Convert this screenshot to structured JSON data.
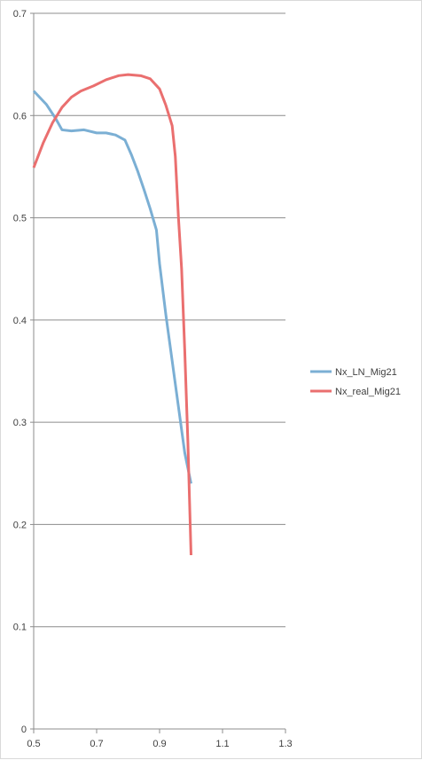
{
  "chart_data": {
    "type": "line",
    "title": "",
    "xlabel": "",
    "ylabel": "",
    "xlim": [
      0.5,
      1.3
    ],
    "ylim": [
      0,
      0.7
    ],
    "x_ticks": [
      "0.5",
      "0.7",
      "0.9",
      "1.1",
      "1.3"
    ],
    "y_ticks": [
      "0",
      "0.1",
      "0.2",
      "0.3",
      "0.4",
      "0.5",
      "0.6",
      "0.7"
    ],
    "grid": "horizontal",
    "legend_position": "right",
    "series": [
      {
        "name": "Nx_LN_Mig21",
        "color": "#7bafd4",
        "points": [
          [
            0.5,
            0.624
          ],
          [
            0.54,
            0.611
          ],
          [
            0.57,
            0.597
          ],
          [
            0.59,
            0.586
          ],
          [
            0.62,
            0.585
          ],
          [
            0.66,
            0.586
          ],
          [
            0.7,
            0.583
          ],
          [
            0.73,
            0.583
          ],
          [
            0.76,
            0.581
          ],
          [
            0.79,
            0.576
          ],
          [
            0.81,
            0.562
          ],
          [
            0.83,
            0.546
          ],
          [
            0.85,
            0.528
          ],
          [
            0.87,
            0.509
          ],
          [
            0.89,
            0.488
          ],
          [
            0.9,
            0.455
          ],
          [
            0.92,
            0.405
          ],
          [
            0.94,
            0.36
          ],
          [
            0.96,
            0.315
          ],
          [
            0.98,
            0.27
          ],
          [
            1.0,
            0.24
          ]
        ]
      },
      {
        "name": "Nx_real_Mig21",
        "color": "#ea6f6f",
        "points": [
          [
            0.5,
            0.549
          ],
          [
            0.53,
            0.573
          ],
          [
            0.56,
            0.593
          ],
          [
            0.59,
            0.608
          ],
          [
            0.62,
            0.618
          ],
          [
            0.65,
            0.624
          ],
          [
            0.69,
            0.629
          ],
          [
            0.73,
            0.635
          ],
          [
            0.77,
            0.639
          ],
          [
            0.8,
            0.64
          ],
          [
            0.84,
            0.639
          ],
          [
            0.87,
            0.636
          ],
          [
            0.9,
            0.626
          ],
          [
            0.92,
            0.61
          ],
          [
            0.94,
            0.59
          ],
          [
            0.95,
            0.56
          ],
          [
            0.96,
            0.5
          ],
          [
            0.97,
            0.45
          ],
          [
            0.98,
            0.37
          ],
          [
            0.99,
            0.28
          ],
          [
            1.0,
            0.17
          ]
        ]
      }
    ]
  }
}
